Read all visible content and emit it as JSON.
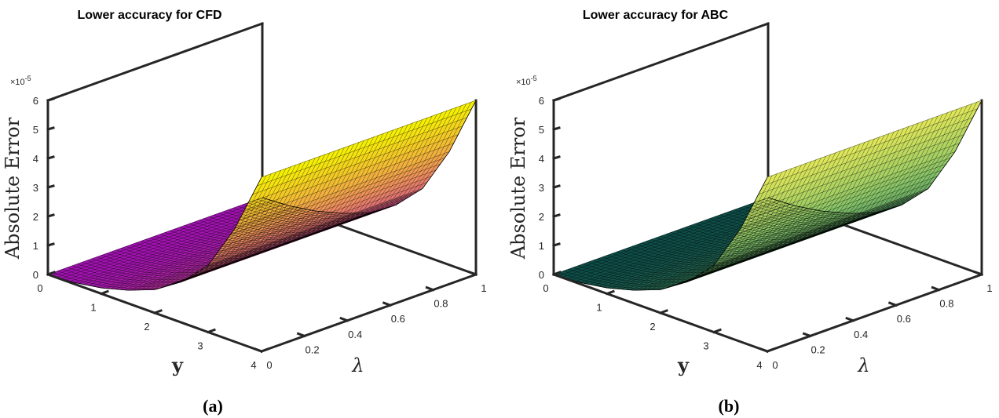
{
  "chart_data": [
    {
      "type": "surface",
      "title": "Lower accuracy for CFD",
      "caption": "(a)",
      "zlabel": "Absolute Error",
      "ylabel": "y",
      "xlabel": "λ",
      "exponent": "×10",
      "exponent_power": "-5",
      "colormap": "magenta-to-yellow",
      "colors": {
        "low": "#a012b0",
        "mid": "#ec8a60",
        "high": "#f6f500"
      },
      "y_range": [
        0,
        4
      ],
      "lambda_range": [
        0,
        1
      ],
      "z_range": [
        0,
        6
      ],
      "y_ticks": [
        "0",
        "1",
        "2",
        "3",
        "4"
      ],
      "lambda_ticks": [
        "0",
        "0.2",
        "0.4",
        "0.6",
        "0.8",
        "1"
      ],
      "z_ticks": [
        "0",
        "1",
        "2",
        "3",
        "4",
        "5",
        "6"
      ],
      "surface": {
        "y": [
          0,
          0.5,
          1,
          1.5,
          2,
          2.5,
          3,
          3.5,
          4
        ],
        "z_vs_y": [
          0,
          0.05,
          0.2,
          0.45,
          0.8,
          1.4,
          2.3,
          3.9,
          6.0
        ],
        "z_vs_lambda": "constant along λ"
      }
    },
    {
      "type": "surface",
      "title": "Lower accuracy for ABC",
      "caption": "(b)",
      "zlabel": "Absolute Error",
      "ylabel": "y",
      "xlabel": "λ",
      "exponent": "×10",
      "exponent_power": "-5",
      "colormap": "dark-teal-to-yellow-green",
      "colors": {
        "low": "#0e4d48",
        "mid": "#84c268",
        "high": "#e3e85a"
      },
      "y_range": [
        0,
        4
      ],
      "lambda_range": [
        0,
        1
      ],
      "z_range": [
        0,
        6
      ],
      "y_ticks": [
        "0",
        "1",
        "2",
        "3",
        "4"
      ],
      "lambda_ticks": [
        "0",
        "0.2",
        "0.4",
        "0.6",
        "0.8",
        "1"
      ],
      "z_ticks": [
        "0",
        "1",
        "2",
        "3",
        "4",
        "5",
        "6"
      ],
      "surface": {
        "y": [
          0,
          0.5,
          1,
          1.5,
          2,
          2.5,
          3,
          3.5,
          4
        ],
        "z_vs_y": [
          0,
          0.05,
          0.2,
          0.45,
          0.8,
          1.4,
          2.3,
          3.9,
          6.0
        ],
        "z_vs_lambda": "constant along λ"
      }
    }
  ]
}
